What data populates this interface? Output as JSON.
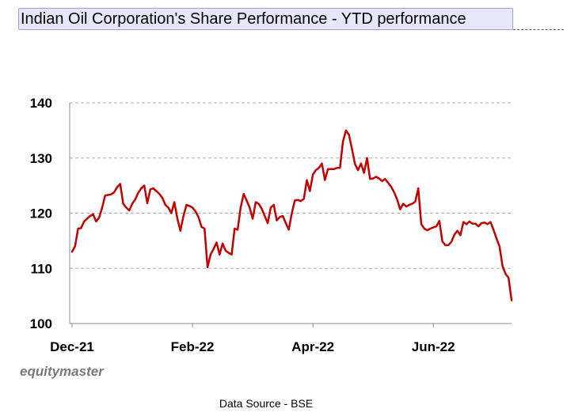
{
  "chart_data": {
    "type": "line",
    "title": "Indian Oil Corporation's Share Performance - YTD performance",
    "xlabel": "",
    "ylabel": "",
    "ylim": [
      100,
      140
    ],
    "yticks": [
      100,
      110,
      120,
      130,
      140
    ],
    "grid": true,
    "x_tick_labels": [
      {
        "label": "Dec-21",
        "index": 0
      },
      {
        "label": "Feb-22",
        "index": 40
      },
      {
        "label": "Apr-22",
        "index": 80
      },
      {
        "label": "Jun-22",
        "index": 120
      }
    ],
    "series": [
      {
        "name": "Indian Oil Corporation",
        "color": "#c00000",
        "values": [
          113,
          114,
          117.2,
          117.3,
          118.5,
          119,
          119.5,
          119.8,
          118.5,
          119.2,
          121,
          123.2,
          123.3,
          123.4,
          123.8,
          124.7,
          125.3,
          121.7,
          121,
          120.5,
          121.7,
          122.5,
          123.7,
          124.5,
          125,
          121.8,
          124.3,
          124.5,
          124,
          123.5,
          122.8,
          121.5,
          121,
          120,
          122,
          119,
          116.8,
          119.5,
          121.5,
          121.3,
          121,
          120.3,
          119.3,
          117.5,
          117.2,
          110.2,
          112.5,
          113.5,
          114.7,
          112.5,
          114.5,
          113.2,
          112.8,
          112.5,
          117.2,
          117,
          121,
          123.5,
          122.3,
          121,
          119,
          122,
          121.7,
          120.8,
          119.5,
          118.2,
          121,
          121.5,
          118.7,
          119.3,
          119.5,
          118.2,
          117,
          120,
          122.3,
          122.4,
          122.2,
          122.6,
          126,
          124,
          127,
          127.8,
          128.2,
          129,
          126,
          128,
          128,
          128,
          128.2,
          128.2,
          133,
          135,
          134.2,
          131.6,
          128.9,
          127.8,
          129,
          127.3,
          130,
          126.2,
          126.3,
          126.6,
          126.3,
          125.8,
          126.2,
          125.5,
          124.8,
          123.8,
          122.5,
          120.7,
          121.7,
          121.2,
          121.5,
          121.7,
          122.1,
          124.5,
          118,
          117.2,
          116.9,
          117.2,
          117.4,
          117.6,
          118.6,
          114.9,
          114.2,
          114.2,
          114.8,
          116.1,
          116.8,
          116,
          118.4,
          118,
          118.5,
          118.1,
          118.1,
          117.6,
          118.2,
          118.3,
          118,
          118.4,
          117,
          115.4,
          114,
          110.4,
          109,
          108.3,
          104.2
        ]
      }
    ]
  },
  "footer": {
    "brand": "equitymaster",
    "source": "Data Source - BSE"
  }
}
